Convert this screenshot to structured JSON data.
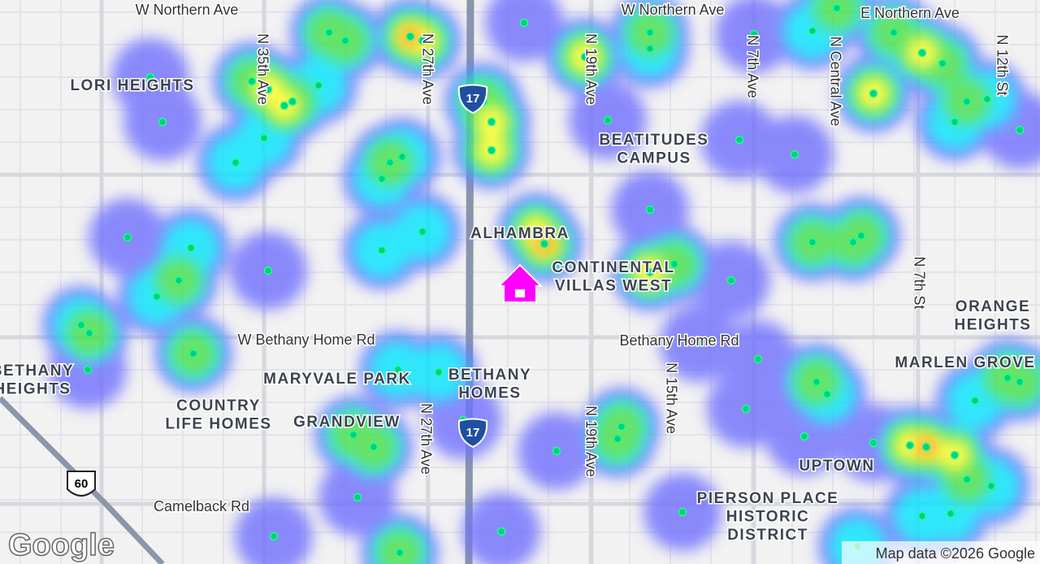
{
  "map": {
    "streets": [
      "W Northern Ave",
      "W Northern Ave",
      "E Northern Ave",
      "W Bethany Home Rd",
      "Bethany Home Rd",
      "Camelback Rd",
      "N 35th Ave",
      "N 27th Ave",
      "N 19th Ave",
      "N 7th Ave",
      "N Central Ave",
      "N 12th St",
      "N 7th St",
      "N 27th Ave",
      "N 19th Ave",
      "N 15th Ave"
    ],
    "neighborhoods": [
      [
        "LORI HEIGHTS"
      ],
      [
        "BEATITUDES",
        "CAMPUS"
      ],
      [
        "ALHAMBRA"
      ],
      [
        "CONTINENTAL",
        "VILLAS WEST"
      ],
      [
        "ORANGE",
        "HEIGHTS"
      ],
      [
        "MARLEN GROVE"
      ],
      [
        "BETHANY",
        "HEIGHTS"
      ],
      [
        "MARYVALE PARK"
      ],
      [
        "BETHANY",
        "HOMES"
      ],
      [
        "COUNTRY",
        "LIFE HOMES"
      ],
      [
        "GRANDVIEW"
      ],
      [
        "UPTOWN"
      ],
      [
        "PIERSON PLACE",
        "HISTORIC",
        "DISTRICT"
      ]
    ],
    "shields": [
      "17",
      "17",
      "60"
    ],
    "logo": "Google",
    "attribution": "Map data ©2026 Google"
  }
}
